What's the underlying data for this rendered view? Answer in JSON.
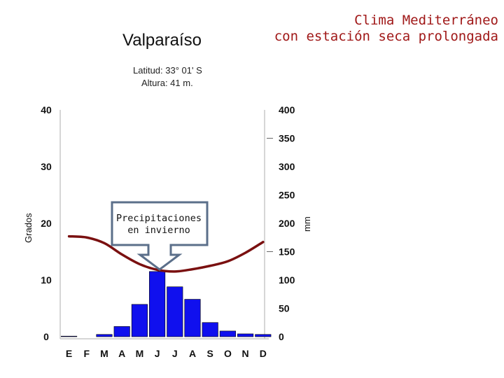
{
  "header": {
    "headline_line1": "Clima Mediterráneo",
    "headline_line2": "con estación seca prolongada",
    "station": "Valparaíso",
    "latitude": "Latitud: 33° 01' S",
    "altitude": "Altura: 41 m."
  },
  "annotation": {
    "line1": "Precipitaciones",
    "line2": "en invierno"
  },
  "chart_data": {
    "type": "bar",
    "categories": [
      "E",
      "F",
      "M",
      "A",
      "M",
      "J",
      "J",
      "A",
      "S",
      "O",
      "N",
      "D"
    ],
    "series": [
      {
        "values": [
          1,
          0,
          4,
          18,
          57,
          115,
          88,
          66,
          25,
          10,
          5,
          4
        ],
        "axis": "right",
        "color": "#1010ee",
        "render": "bar"
      },
      {
        "values": [
          17.7,
          17.5,
          16.5,
          14.5,
          12.8,
          11.8,
          11.5,
          11.9,
          12.5,
          13.3,
          14.8,
          16.7
        ],
        "axis": "left",
        "color": "#7a1010",
        "render": "line"
      }
    ],
    "ylabel": "Grados",
    "y2label": "mm",
    "ylim": [
      0,
      40
    ],
    "y2lim": [
      0,
      400
    ],
    "yticks": [
      0,
      10,
      20,
      30,
      40
    ],
    "y2ticks": [
      0,
      50,
      100,
      150,
      200,
      250,
      300,
      350,
      400
    ],
    "grid": false
  }
}
